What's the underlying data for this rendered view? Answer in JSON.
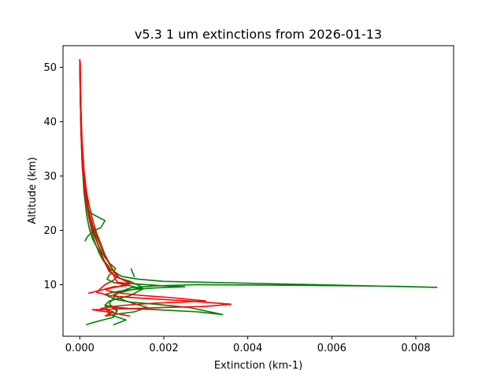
{
  "chart_data": {
    "type": "line",
    "title": "v5.3 1 um extinctions from 2026-01-13",
    "xlabel": "Extinction (km-1)",
    "ylabel": "Altitude (km)",
    "xlim": [
      -0.0004,
      0.0089
    ],
    "ylim": [
      0.5,
      54.0
    ],
    "xticks": [
      0.0,
      0.002,
      0.004,
      0.006,
      0.008
    ],
    "xtick_labels": [
      "0.000",
      "0.002",
      "0.004",
      "0.006",
      "0.008"
    ],
    "yticks": [
      10,
      20,
      30,
      40,
      50
    ],
    "ytick_labels": [
      "10",
      "20",
      "30",
      "40",
      "50"
    ],
    "grid": false,
    "legend": "none",
    "colors": {
      "green": "#008000",
      "red": "#ff0000"
    },
    "series": [
      {
        "color": "green",
        "x": [
          0.0,
          1e-05,
          3e-05,
          6e-05,
          0.0001,
          0.00015,
          0.0002,
          0.00028,
          0.00035,
          0.00045,
          0.00055,
          0.0007,
          0.0008,
          0.0009,
          0.001,
          0.0014,
          0.002,
          0.0085,
          0.0075,
          0.005,
          0.0028,
          0.0018,
          0.0012,
          0.0009,
          0.0008,
          0.0007,
          0.0009
        ],
        "y": [
          51.5,
          45,
          38,
          32,
          28,
          26,
          23,
          20,
          18,
          16,
          14.5,
          13,
          12.5,
          12,
          11.5,
          11.0,
          10.6,
          9.5,
          9.7,
          9.9,
          10.0,
          9.8,
          9.4,
          8.5,
          7.5,
          6.5,
          5.0
        ]
      },
      {
        "color": "green",
        "x": [
          0.0,
          2e-05,
          5e-05,
          0.0001,
          0.00015,
          0.0002,
          0.0003,
          0.0004,
          0.0005,
          0.00065,
          0.0008,
          0.00095,
          0.0012,
          0.002,
          0.0025,
          0.0018,
          0.0011,
          0.0008,
          0.0006,
          0.0007,
          0.0009,
          0.0012,
          0.0018,
          0.0026,
          0.0034,
          0.0028,
          0.0018,
          0.0012,
          0.0009,
          0.0006,
          0.0007,
          0.0011,
          0.0008
        ],
        "y": [
          51.0,
          44,
          36,
          30,
          27,
          24,
          21,
          19,
          17,
          14.5,
          12.5,
          11.2,
          10.2,
          9.8,
          9.6,
          9.4,
          9.0,
          8.6,
          8.2,
          7.8,
          7.2,
          6.8,
          6.4,
          5.8,
          4.5,
          5.0,
          5.4,
          5.6,
          5.8,
          6.2,
          4.5,
          3.5,
          2.6
        ]
      },
      {
        "color": "green",
        "x": [
          0.0,
          2e-05,
          6e-05,
          0.0001,
          0.00018,
          0.00025,
          0.00035,
          0.00045,
          0.0006,
          0.0007,
          0.00085,
          0.0008,
          0.0007,
          0.00065,
          0.0008,
          0.0011,
          0.0015,
          0.0012,
          0.0009,
          0.0007,
          0.0006,
          0.0009,
          0.0008,
          0.0005,
          0.0003,
          0.00015
        ],
        "y": [
          51.0,
          43,
          35,
          29,
          25,
          22,
          19.5,
          17,
          15,
          14,
          13.0,
          12.2,
          11.8,
          11.0,
          10.4,
          10.0,
          9.2,
          8.0,
          7.4,
          7.0,
          6.2,
          5.5,
          4.0,
          3.4,
          3.0,
          2.6
        ]
      },
      {
        "color": "green",
        "x": [
          0.0,
          2e-05,
          5e-05,
          0.0001,
          0.00015,
          0.00022,
          0.0003,
          0.00045,
          0.0006,
          0.0005,
          0.00035,
          0.00025,
          0.00018,
          0.00012
        ],
        "y": [
          51.0,
          42,
          34,
          28,
          25,
          23.5,
          23.0,
          22.4,
          21.8,
          20.5,
          20.0,
          19.4,
          18.8,
          18.0
        ]
      },
      {
        "color": "green",
        "x": [
          0.0,
          2e-05,
          5e-05,
          0.0001,
          0.00016,
          0.00022,
          0.0003,
          0.0004,
          0.0005,
          0.0006,
          0.0007,
          0.00075,
          0.0009,
          0.0012,
          0.0015,
          0.0012,
          0.001,
          0.0008,
          0.0009,
          0.0011,
          0.0013,
          0.0016,
          0.0013,
          0.0009,
          0.0006
        ],
        "y": [
          51.0,
          41,
          33,
          27,
          23,
          20.5,
          18.5,
          17,
          15.5,
          14.2,
          13.2,
          12.2,
          11.3,
          10.6,
          9.5,
          9.0,
          8.6,
          8.2,
          7.6,
          7.0,
          6.5,
          5.8,
          5.0,
          4.6,
          4.2
        ]
      },
      {
        "color": "green",
        "x": [
          0.00122,
          0.00126,
          0.0013
        ],
        "y": [
          13.0,
          12.2,
          11.4
        ]
      },
      {
        "color": "red",
        "x": [
          0.0,
          1e-05,
          3e-05,
          6e-05,
          0.0001,
          0.00015,
          0.0002,
          0.00028,
          0.00036,
          0.00045,
          0.00052,
          0.0006,
          0.0007,
          0.0008,
          0.00085,
          0.0009,
          0.0012,
          0.0011,
          0.0008,
          0.0006,
          0.0007,
          0.001,
          0.0015,
          0.0022,
          0.003,
          0.0025,
          0.0018,
          0.0012,
          0.0008,
          0.0005,
          0.0008,
          0.0006
        ],
        "y": [
          51.5,
          45,
          38,
          32,
          28.5,
          26,
          23.5,
          21,
          19,
          17,
          15.5,
          14,
          12.8,
          11.8,
          11.0,
          10.4,
          10.2,
          9.8,
          9.6,
          9.2,
          8.8,
          8.4,
          8.0,
          7.6,
          7.0,
          6.8,
          6.6,
          6.3,
          6.0,
          5.6,
          5.0,
          4.2
        ]
      },
      {
        "color": "red",
        "x": [
          0.0,
          2e-05,
          5e-05,
          0.0001,
          0.00016,
          0.00024,
          0.00032,
          0.0004,
          0.0005,
          0.0006,
          0.0007,
          0.0008,
          0.0009,
          0.0008,
          0.0006,
          0.0004,
          0.0007,
          0.0011,
          0.0017,
          0.0026,
          0.0036,
          0.003,
          0.002,
          0.0013,
          0.0008,
          0.0005,
          0.0003,
          0.0008,
          0.0012
        ],
        "y": [
          51.5,
          44,
          37,
          31,
          27,
          24,
          21.5,
          19.5,
          17.5,
          15.5,
          14,
          12.6,
          11.6,
          10.8,
          10.0,
          8.6,
          8.0,
          7.7,
          7.4,
          7.0,
          6.4,
          6.0,
          5.8,
          5.6,
          5.5,
          5.4,
          5.4,
          4.8,
          4.2
        ]
      },
      {
        "color": "red",
        "x": [
          1e-05,
          3e-05,
          7e-05,
          0.00012,
          0.0002,
          0.0003,
          0.0004,
          0.0005,
          0.0006,
          0.0007,
          0.00095,
          0.0012,
          0.0009,
          0.0005,
          0.0003,
          0.0002
        ],
        "y": [
          51.0,
          40,
          32,
          27,
          23,
          20,
          18,
          16,
          14,
          12.4,
          11.2,
          10.4,
          9.6,
          9.0,
          8.6,
          8.4
        ]
      }
    ]
  }
}
